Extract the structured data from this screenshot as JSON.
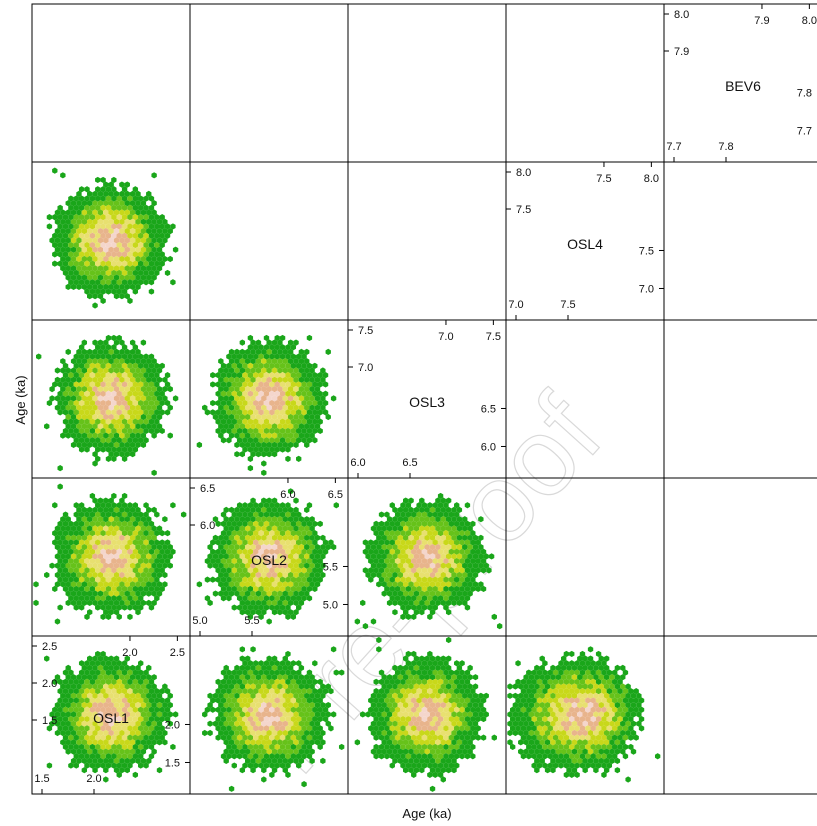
{
  "chart_data": {
    "type": "scatter",
    "subtype": "hexbin-pairs-matrix",
    "xlabel": "Age (ka)",
    "ylabel": "Age (ka)",
    "variables": [
      "OSL1",
      "OSL2",
      "OSL3",
      "OSL4",
      "BEV6"
    ],
    "diagonal": [
      {
        "label": "OSL1",
        "ticks_top": [
          "2.0",
          "2.5"
        ],
        "ticks_left": [
          "2.5",
          "2.0",
          "1.5"
        ],
        "ticks_right": [
          "2.0",
          "1.5"
        ],
        "ticks_bottom": [
          "1.5",
          "2.0"
        ]
      },
      {
        "label": "OSL2",
        "ticks_top": [
          "6.0",
          "6.5"
        ],
        "ticks_left": [
          "6.5",
          "6.0"
        ],
        "ticks_right": [
          "5.5",
          "5.0"
        ],
        "ticks_bottom": [
          "5.0",
          "5.5"
        ]
      },
      {
        "label": "OSL3",
        "ticks_top": [
          "7.0",
          "7.5"
        ],
        "ticks_left": [
          "7.5",
          "7.0"
        ],
        "ticks_right": [
          "6.5",
          "6.0"
        ],
        "ticks_bottom": [
          "6.0",
          "6.5"
        ]
      },
      {
        "label": "OSL4",
        "ticks_top": [
          "7.5",
          "8.0"
        ],
        "ticks_left": [
          "8.0",
          "7.5"
        ],
        "ticks_right": [
          "7.5",
          "7.0"
        ],
        "ticks_bottom": [
          "7.0",
          "7.5"
        ]
      },
      {
        "label": "BEV6",
        "ticks_top": [
          "7.9",
          "8.0"
        ],
        "ticks_left": [
          "8.0",
          "7.9"
        ],
        "ticks_right": [
          "7.8",
          "7.7"
        ],
        "ticks_bottom": [
          "7.7",
          "7.8"
        ]
      }
    ],
    "density_colors": [
      "#1aa61a",
      "#66c21a",
      "#c8d81a",
      "#e8e070",
      "#e8b48c",
      "#f4d6cc"
    ],
    "watermark": "Pre-proof",
    "grid": false,
    "legend": "none"
  }
}
